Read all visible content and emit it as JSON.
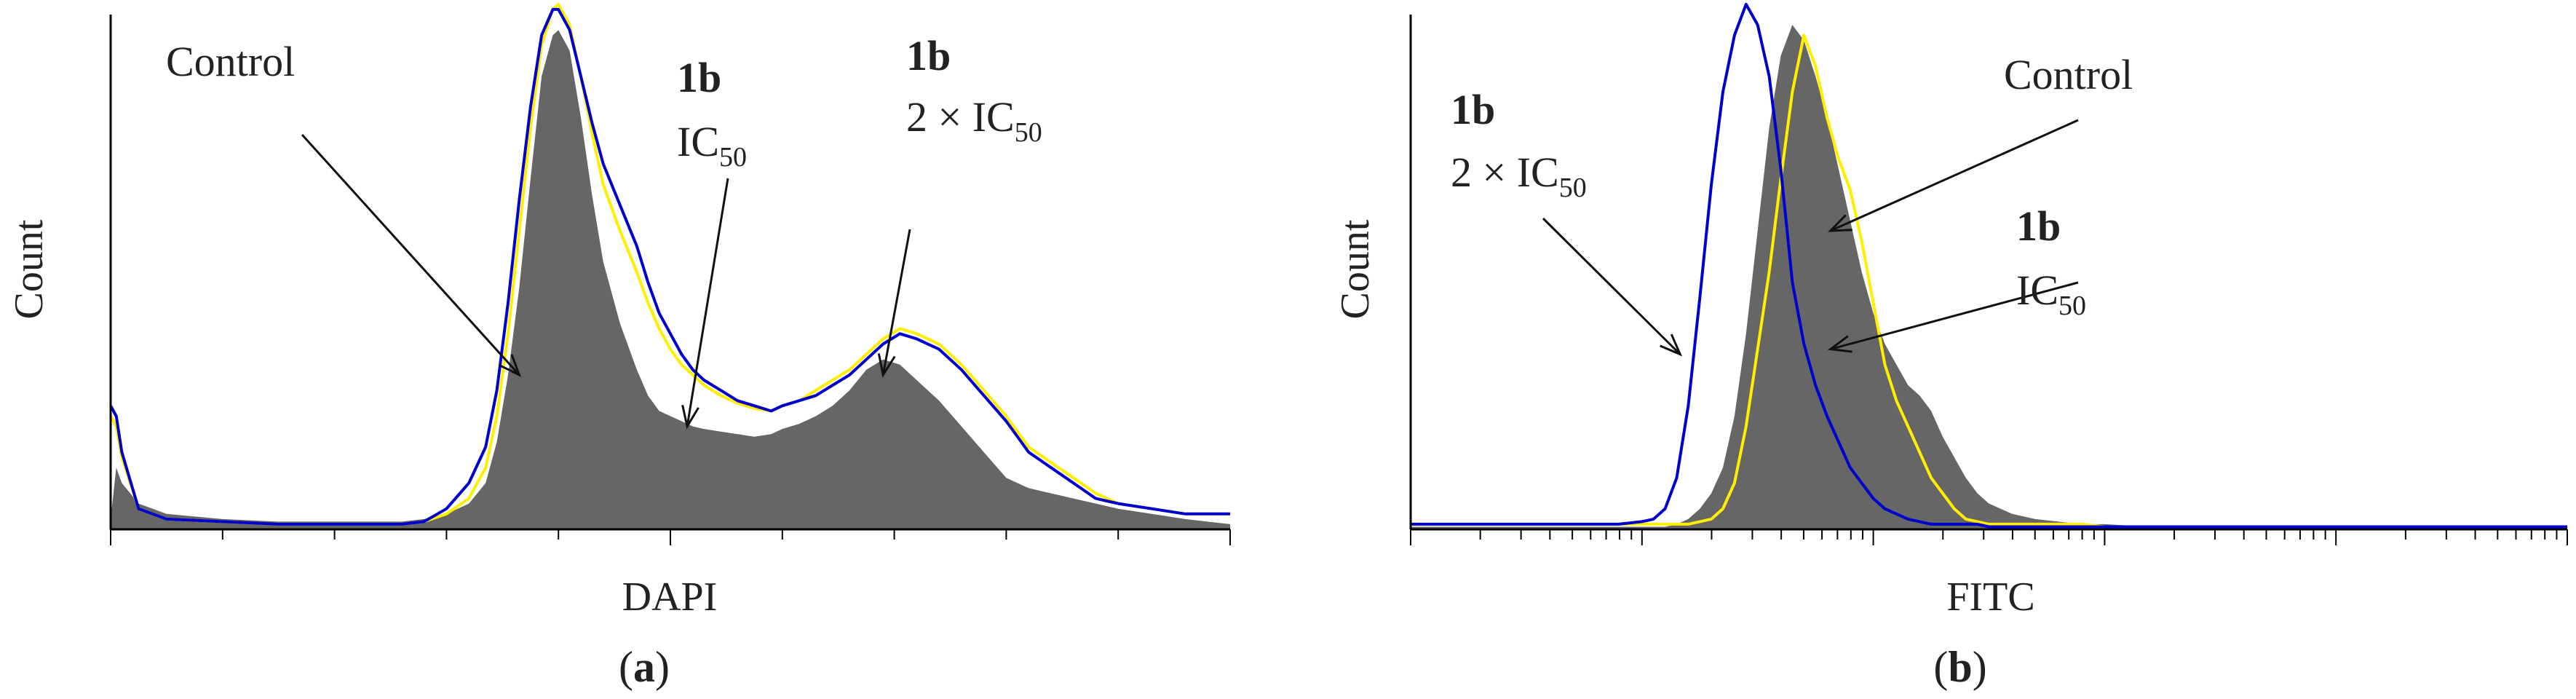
{
  "panels": [
    {
      "id": "a",
      "panel_label": "a",
      "chart_data": {
        "type": "area",
        "title": "",
        "xlabel": "DAPI",
        "ylabel": "Count",
        "xlim": [
          0,
          1000
        ],
        "ylim": [
          0,
          100
        ],
        "x_scale": "linear",
        "grid": false,
        "x": [
          0,
          5,
          10,
          25,
          50,
          100,
          150,
          200,
          230,
          260,
          280,
          300,
          320,
          335,
          345,
          355,
          365,
          375,
          385,
          395,
          400,
          410,
          420,
          430,
          440,
          455,
          470,
          480,
          490,
          500,
          510,
          520,
          530,
          545,
          560,
          575,
          590,
          600,
          615,
          630,
          645,
          660,
          675,
          690,
          705,
          720,
          740,
          760,
          780,
          800,
          820,
          840,
          860,
          880,
          900,
          930,
          960,
          1000
        ],
        "series": [
          {
            "values": [
              2,
              12,
              9,
              5,
              3,
              2,
              1.5,
              1.5,
              1.5,
              1.5,
              2,
              3,
              5,
              9,
              17,
              30,
              47,
              68,
              88,
              96,
              97,
              93,
              80,
              65,
              52,
              40,
              31,
              26,
              23,
              22,
              21,
              20,
              19.5,
              19,
              18.5,
              18,
              18.5,
              19.5,
              20.5,
              22,
              24,
              27,
              31,
              33,
              32,
              29,
              25,
              20,
              15,
              10,
              8,
              7,
              6,
              5,
              4,
              3,
              2,
              1
            ],
            "color": "#666666"
          },
          {
            "values": [
              22,
              20,
              14,
              4,
              2,
              1.5,
              1,
              1,
              1,
              1,
              1.5,
              3,
              6,
              12,
              22,
              38,
              58,
              78,
              94,
              101,
              102,
              98,
              88,
              77,
              67,
              58,
              50,
              44,
              39,
              35,
              32,
              30,
              28,
              26,
              24.5,
              23.5,
              23,
              24,
              25,
              27,
              29,
              31,
              34,
              37,
              39,
              38,
              36,
              32,
              27,
              22,
              16,
              13,
              10,
              7,
              5,
              4,
              3,
              3
            ],
            "color": "#ffee00"
          },
          {
            "values": [
              24,
              22,
              15,
              4,
              2,
              1.5,
              1,
              1,
              1,
              1,
              1.5,
              4,
              9,
              16,
              27,
              44,
              64,
              82,
              96,
              101,
              101,
              97,
              88,
              79,
              71,
              63,
              55,
              48,
              42,
              38,
              34,
              31,
              29,
              27,
              25,
              24,
              23,
              24,
              25,
              26,
              28,
              30,
              33,
              36,
              38,
              37,
              35,
              31,
              26,
              21,
              15,
              12,
              9,
              6,
              5,
              4,
              3,
              3
            ],
            "color": "#0000cc"
          }
        ],
        "annotations": [
          {
            "text": "Control",
            "target": [
              365,
              30
            ]
          },
          {
            "bold": "1b",
            "text": "IC",
            "sub": "50",
            "target": [
              515,
              20
            ]
          },
          {
            "bold": "1b",
            "text": "2 × IC",
            "sub": "50",
            "target": [
              690,
              30
            ]
          }
        ]
      }
    },
    {
      "id": "b",
      "panel_label": "b",
      "chart_data": {
        "type": "area",
        "title": "",
        "xlabel": "FITC",
        "ylabel": "Count",
        "xlim": [
          0,
          1000
        ],
        "ylim": [
          0,
          100
        ],
        "x_scale": "log",
        "grid": false,
        "x": [
          0,
          20,
          40,
          60,
          80,
          100,
          120,
          140,
          160,
          180,
          200,
          210,
          220,
          230,
          240,
          250,
          260,
          270,
          280,
          290,
          300,
          310,
          320,
          330,
          340,
          350,
          360,
          370,
          380,
          390,
          400,
          410,
          420,
          430,
          440,
          450,
          460,
          470,
          480,
          490,
          500,
          520,
          540,
          560,
          580,
          600,
          640,
          680,
          720,
          760,
          800,
          850,
          900,
          950,
          1000
        ],
        "series": [
          {
            "values": [
              1,
              1,
              1,
              1,
              1,
              1,
              1,
              1,
              1,
              1,
              1,
              1,
              1,
              1,
              1,
              1.5,
              2,
              4,
              9,
              20,
              35,
              50,
              68,
              85,
              96,
              90,
              80,
              72,
              66,
              56,
              44,
              32,
              25,
              20,
              15,
              10,
              7,
              4,
              2,
              1.5,
              1,
              1,
              1,
              1,
              1,
              0.5,
              0.5,
              0.5,
              0.5,
              0.5,
              0.5,
              0.5,
              0.5,
              0.5,
              0.5
            ],
            "color": "#ffee00"
          },
          {
            "values": [
              1,
              1,
              1,
              1,
              1,
              1,
              1,
              1,
              1,
              1,
              1.5,
              2,
              4,
              10,
              24,
              45,
              67,
              85,
              96,
              102,
              98,
              88,
              70,
              48,
              36,
              28,
              22,
              17,
              12,
              9,
              6,
              4,
              3,
              2,
              1.5,
              1,
              1,
              1,
              1,
              1,
              0.5,
              0.5,
              0.5,
              0.5,
              0.5,
              0.5,
              0.5,
              0.5,
              0.5,
              0.5,
              0.5,
              0.5,
              0.5,
              0.5,
              0.5
            ],
            "color": "#0000cc"
          },
          {
            "values": [
              0.5,
              0.5,
              0.5,
              0.5,
              0.5,
              0.5,
              0.5,
              0.5,
              0.5,
              0.5,
              0.5,
              0.5,
              0.5,
              1,
              2,
              4,
              7,
              12,
              22,
              38,
              58,
              78,
              92,
              98,
              95,
              88,
              80,
              70,
              60,
              50,
              42,
              36,
              32,
              28,
              26,
              23,
              18,
              14,
              10,
              7,
              5,
              3,
              2,
              1.5,
              1,
              1,
              0.5,
              0.5,
              0.5,
              0.5,
              0.5,
              0.5,
              0.5,
              0.5,
              0.5
            ],
            "color": "#666666"
          }
        ],
        "annotations": [
          {
            "bold": "1b",
            "text": "2 × IC",
            "sub": "50",
            "target": [
              233,
              34
            ]
          },
          {
            "text": "Control",
            "target": [
              363,
              58
            ]
          },
          {
            "bold": "1b",
            "text": "IC",
            "sub": "50",
            "target": [
              363,
              35
            ]
          }
        ]
      }
    }
  ]
}
